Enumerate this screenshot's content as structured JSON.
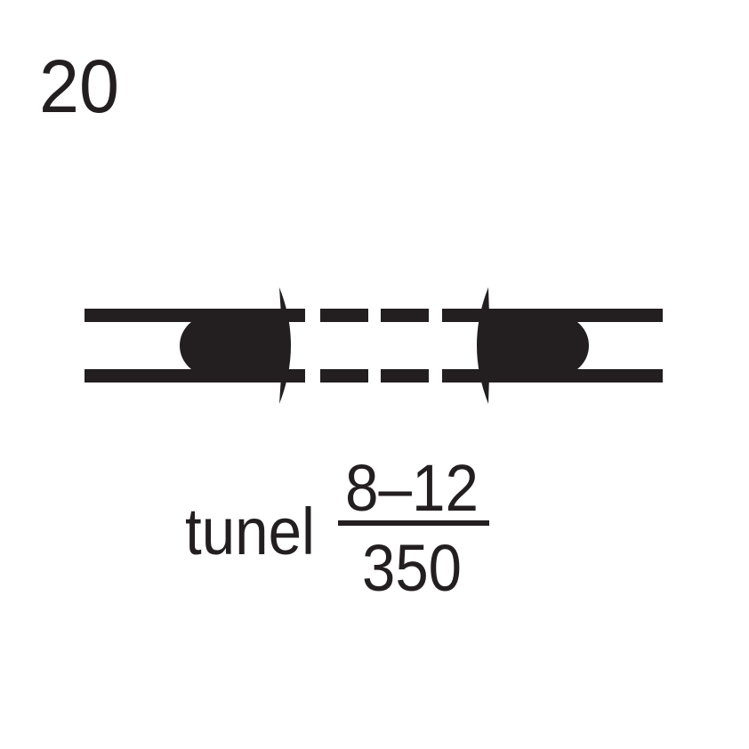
{
  "sign": {
    "number": "20",
    "label": "tunel",
    "fraction": {
      "numerator": "8–12",
      "denominator": "350"
    }
  },
  "colors": {
    "ink": "#231f20",
    "background": "#ffffff"
  }
}
